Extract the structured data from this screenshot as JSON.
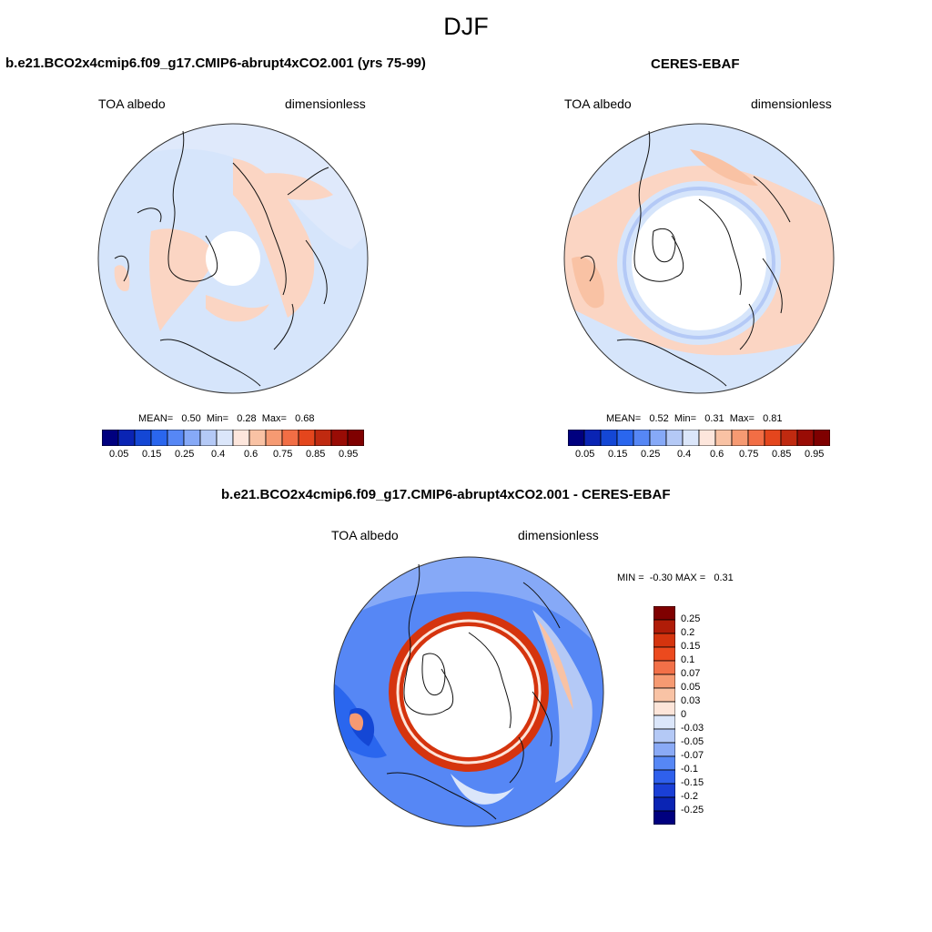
{
  "figure": {
    "title": "DJF"
  },
  "panels": [
    {
      "title": "b.e21.BCO2x4cmip6.f09_g17.CMIP6-abrupt4xCO2.001 (yrs 75-99)",
      "variable": "TOA albedo",
      "units": "dimensionless",
      "stats": "MEAN=   0.50  Min=   0.28  Max=   0.68",
      "colorbar_ticks": [
        "0.05",
        "0.15",
        "0.25",
        "0.4",
        "0.6",
        "0.75",
        "0.85",
        "0.95"
      ]
    },
    {
      "title": "CERES-EBAF",
      "variable": "TOA albedo",
      "units": "dimensionless",
      "stats": "MEAN=   0.52  Min=   0.31  Max=   0.81",
      "colorbar_ticks": [
        "0.05",
        "0.15",
        "0.25",
        "0.4",
        "0.6",
        "0.75",
        "0.85",
        "0.95"
      ]
    },
    {
      "title": "b.e21.BCO2x4cmip6.f09_g17.CMIP6-abrupt4xCO2.001 - CERES-EBAF",
      "variable": "TOA albedo",
      "units": "dimensionless",
      "stats": "MIN =  -0.30 MAX =   0.31",
      "colorbar_ticks": [
        "0.25",
        "0.2",
        "0.15",
        "0.1",
        "0.07",
        "0.05",
        "0.03",
        "0",
        "-0.03",
        "-0.05",
        "-0.07",
        "-0.1",
        "-0.15",
        "-0.2",
        "-0.25"
      ]
    }
  ],
  "colors": {
    "level_scale": [
      "#00007f",
      "#0a24b4",
      "#1447d5",
      "#2a66ee",
      "#5687f5",
      "#86a9f7",
      "#b4c9f6",
      "#dbe6fa",
      "#fde6dc",
      "#f9c2a4",
      "#f69a72",
      "#f26e45",
      "#e4461d",
      "#c02a10",
      "#990c05",
      "#7f0000"
    ],
    "diff_scale": [
      "#7f0000",
      "#b01c08",
      "#d5340e",
      "#ec4a1e",
      "#f27048",
      "#f69a72",
      "#f9c3a5",
      "#fde5d9",
      "#dbe6fa",
      "#b4c9f6",
      "#8aaaf6",
      "#5687f5",
      "#2f60ec",
      "#1a3fd6",
      "#0a24b4",
      "#00007f"
    ],
    "map_blue": "#d6e5fb",
    "map_orange": "#fbd5c3"
  }
}
